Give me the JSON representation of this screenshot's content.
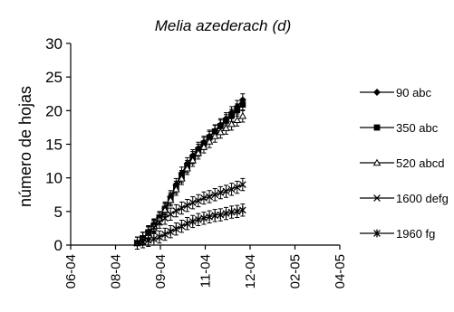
{
  "chart_data": {
    "type": "line",
    "title_species": "Melia azederach",
    "title_panel": "(d)",
    "xlabel": "",
    "ylabel": "número de hojas",
    "ylim": [
      0,
      30
    ],
    "yticks": [
      0,
      5,
      10,
      15,
      20,
      25,
      30
    ],
    "xlim": [
      "2006-04",
      "2014-05"
    ],
    "xticks": [
      "06-04",
      "08-04",
      "09-04",
      "11-04",
      "12-04",
      "02-05",
      "04-05"
    ],
    "x": [
      "2008-04",
      "2008-05",
      "2008-06",
      "2008-07",
      "2008-08",
      "2008-09",
      "2008-10",
      "2008-11",
      "2008-12",
      "2009-01",
      "2009-02",
      "2009-03",
      "2009-04",
      "2009-05",
      "2009-06",
      "2009-07",
      "2009-08",
      "2009-09",
      "2009-10",
      "2009-11",
      "2009-12",
      "2010-01",
      "2010-02",
      "2010-03",
      "2010-04",
      "2010-05",
      "2010-06",
      "2010-07",
      "2010-08",
      "2010-09",
      "2010-10",
      "2010-11",
      "2010-12",
      "2011-01",
      "2011-02",
      "2011-03",
      "2011-04",
      "2011-05",
      "2011-06"
    ],
    "series": [
      {
        "name": "90 abc",
        "marker": "diamond",
        "values": [
          0.3,
          0.6,
          1.0,
          1.5,
          2.0,
          2.5,
          3.0,
          3.5,
          4.1,
          4.8,
          5.5,
          6.3,
          7.2,
          8.1,
          9.0,
          9.9,
          10.7,
          11.4,
          12.1,
          12.7,
          13.3,
          13.9,
          14.4,
          14.9,
          15.3,
          15.7,
          16.2,
          16.6,
          17.0,
          17.5,
          17.9,
          18.3,
          18.8,
          19.2,
          19.7,
          20.1,
          20.6,
          21.1,
          21.6
        ]
      },
      {
        "name": "350 abc",
        "marker": "square",
        "values": [
          0.3,
          0.6,
          1.0,
          1.4,
          1.9,
          2.4,
          2.9,
          3.5,
          4.1,
          4.7,
          5.4,
          6.1,
          6.9,
          7.7,
          8.6,
          9.4,
          10.2,
          11.0,
          11.7,
          12.4,
          13.0,
          13.6,
          14.1,
          14.6,
          15.1,
          15.6,
          16.0,
          16.5,
          16.9,
          17.3,
          17.7,
          18.1,
          18.5,
          18.9,
          19.3,
          19.7,
          20.1,
          20.5,
          20.9
        ]
      },
      {
        "name": "520 abcd",
        "marker": "triangle",
        "values": [
          0.3,
          0.6,
          1.0,
          1.4,
          1.8,
          2.3,
          2.8,
          3.3,
          3.9,
          4.5,
          5.2,
          5.9,
          6.7,
          7.5,
          8.3,
          9.1,
          9.9,
          10.7,
          11.4,
          12.0,
          12.6,
          13.2,
          13.7,
          14.2,
          14.6,
          15.0,
          15.4,
          15.8,
          16.2,
          16.5,
          16.8,
          17.1,
          17.4,
          17.7,
          18.0,
          18.3,
          18.6,
          18.9,
          19.2
        ]
      },
      {
        "name": "1600 defg",
        "marker": "x",
        "values": [
          0.3,
          0.6,
          1.0,
          1.4,
          1.8,
          2.2,
          2.6,
          3.0,
          3.4,
          3.7,
          4.0,
          4.3,
          4.6,
          4.9,
          5.1,
          5.3,
          5.5,
          5.7,
          5.9,
          6.1,
          6.3,
          6.5,
          6.6,
          6.8,
          7.0,
          7.1,
          7.2,
          7.4,
          7.5,
          7.6,
          7.8,
          7.9,
          8.0,
          8.2,
          8.3,
          8.5,
          8.6,
          8.8,
          9.0
        ]
      },
      {
        "name": "1960 fg",
        "marker": "star",
        "values": [
          0.3,
          0.4,
          0.5,
          0.6,
          0.7,
          0.8,
          0.9,
          1.0,
          1.2,
          1.4,
          1.6,
          1.8,
          2.0,
          2.2,
          2.4,
          2.6,
          2.8,
          3.0,
          3.2,
          3.4,
          3.5,
          3.7,
          3.8,
          3.9,
          4.0,
          4.1,
          4.2,
          4.3,
          4.4,
          4.5,
          4.5,
          4.6,
          4.7,
          4.8,
          4.9,
          4.9,
          5.0,
          5.1,
          5.2
        ]
      }
    ],
    "error_bar": 0.9,
    "legend_position": "right",
    "grid": false
  }
}
